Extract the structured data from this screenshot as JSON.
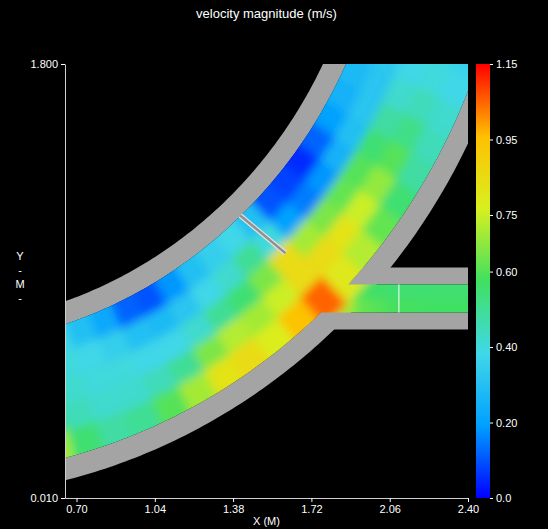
{
  "chart_data": {
    "type": "heatmap",
    "title": "velocity magnitude (m/s)",
    "xlabel": "X (M)",
    "ylabel": "Y\n-\nM\n-",
    "xlim": [
      0.65,
      2.4
    ],
    "xticks": [
      {
        "value": 0.7,
        "label": "0.70"
      },
      {
        "value": 1.04,
        "label": "1.04"
      },
      {
        "value": 1.38,
        "label": "1.38"
      },
      {
        "value": 1.72,
        "label": "1.72"
      },
      {
        "value": 2.06,
        "label": "2.06"
      },
      {
        "value": 2.4,
        "label": "2.40"
      }
    ],
    "ylim": [
      0.01,
      1.8
    ],
    "yticks": [
      {
        "value": 0.01,
        "label": "0.010"
      },
      {
        "value": 1.8,
        "label": "1.800"
      }
    ],
    "geometry": {
      "center": [
        0.024,
        2.668
      ],
      "wall": 0.09,
      "branch_wall": 0.07,
      "valve": [
        [
          1.411,
          1.175
        ],
        [
          1.607,
          1.02
        ]
      ],
      "interface_x": 2.1
    },
    "field": {
      "angles": [
        -78,
        -75,
        -72,
        -69,
        -66,
        -63,
        -60,
        -57,
        -54,
        -51,
        -48,
        -45,
        -42,
        -39,
        -36,
        -33,
        -30,
        -27,
        -24,
        -21,
        -18
      ],
      "radii": [
        2.04,
        2.146,
        2.252,
        2.358,
        2.464,
        2.57
      ],
      "values": [
        [
          0.4,
          0.42,
          0.45,
          0.55,
          0.7
        ],
        [
          0.38,
          0.4,
          0.42,
          0.45,
          0.55
        ],
        [
          0.3,
          0.38,
          0.4,
          0.42,
          0.48
        ],
        [
          0.22,
          0.35,
          0.4,
          0.42,
          0.5
        ],
        [
          0.12,
          0.3,
          0.38,
          0.45,
          0.6
        ],
        [
          0.1,
          0.28,
          0.38,
          0.5,
          0.7
        ],
        [
          0.18,
          0.32,
          0.42,
          0.65,
          0.82
        ],
        [
          0.3,
          0.38,
          0.5,
          0.72,
          0.85
        ],
        [
          0.35,
          0.42,
          0.55,
          0.7,
          0.78
        ],
        [
          0.38,
          0.5,
          0.65,
          0.75,
          0.95
        ],
        [
          0.3,
          0.4,
          0.85,
          0.85,
          1.05
        ],
        [
          0.1,
          0.2,
          0.7,
          0.85,
          0.8
        ],
        [
          0.08,
          0.15,
          0.65,
          0.82,
          0.72
        ],
        [
          0.05,
          0.18,
          0.62,
          0.75,
          0.62
        ],
        [
          0.12,
          0.25,
          0.6,
          0.68,
          0.55
        ],
        [
          0.2,
          0.3,
          0.55,
          0.6,
          0.48
        ],
        [
          0.25,
          0.32,
          0.48,
          0.52,
          0.45
        ],
        [
          0.28,
          0.32,
          0.42,
          0.45,
          0.42
        ],
        [
          0.3,
          0.33,
          0.38,
          0.4,
          0.38
        ],
        [
          0.3,
          0.32,
          0.35,
          0.38,
          0.36
        ]
      ]
    },
    "branch_field": {
      "x": [
        1.7,
        1.77,
        1.84,
        1.91,
        1.98,
        2.05,
        2.12,
        2.19,
        2.26,
        2.33,
        2.4
      ],
      "y": [
        0.775,
        0.833,
        0.891
      ],
      "values": [
        [
          0.95,
          0.8,
          0.7,
          0.62,
          0.6,
          0.58,
          0.58,
          0.57,
          0.57,
          0.57
        ],
        [
          0.7,
          0.68,
          0.62,
          0.58,
          0.56,
          0.55,
          0.55,
          0.55,
          0.55,
          0.55
        ]
      ]
    },
    "colorbar": {
      "range": [
        0,
        1.15
      ],
      "ticks": [
        {
          "value": 0,
          "label": "0.0"
        },
        {
          "value": 0.2,
          "label": "0.20"
        },
        {
          "value": 0.4,
          "label": "0.40"
        },
        {
          "value": 0.6,
          "label": "0.60"
        },
        {
          "value": 0.75,
          "label": "0.75"
        },
        {
          "value": 0.95,
          "label": "0.95"
        },
        {
          "value": 1.15,
          "label": "1.15"
        }
      ],
      "colors": [
        "#0000ff",
        "#00a0ff",
        "#40d8e8",
        "#40e060",
        "#d8f020",
        "#ffc000",
        "#ff0000"
      ]
    }
  }
}
